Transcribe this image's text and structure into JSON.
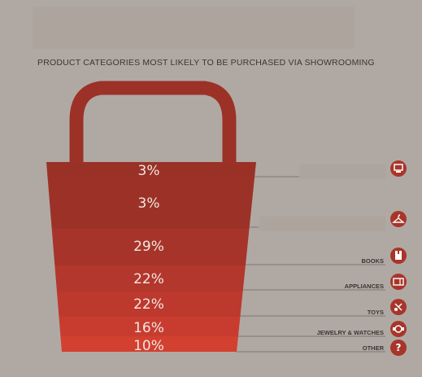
{
  "title": "PRODUCT CATEGORIES MOST LIKELY TO BE PURCHASED VIA SHOWROOMING",
  "colors": {
    "background": "#b0a9a3",
    "handle": "#9c3127",
    "bands": [
      "#9a3127",
      "#9c3227",
      "#a6342a",
      "#b3372c",
      "#bd392d",
      "#c83c30",
      "#d2402f"
    ],
    "icon_circle": "#a8352a",
    "connector": "#7e7671"
  },
  "chart_data": {
    "type": "bar",
    "title": "PRODUCT CATEGORIES MOST LIKELY TO BE PURCHASED VIA SHOWROOMING",
    "categories": [
      "",
      "",
      "BOOKS",
      "APPLIANCES",
      "TOYS",
      "JEWELRY & WATCHES",
      "OTHER"
    ],
    "values": [
      3,
      3,
      29,
      22,
      22,
      16,
      10
    ],
    "value_labels": [
      "3%",
      "3%",
      "29%",
      "22%",
      "22%",
      "16%",
      "10%"
    ],
    "icons": [
      "computer-icon",
      "clothes-hanger-icon",
      "book-icon",
      "appliance-icon",
      "toys-icon",
      "watch-icon",
      "question-icon"
    ],
    "unit": "%"
  }
}
